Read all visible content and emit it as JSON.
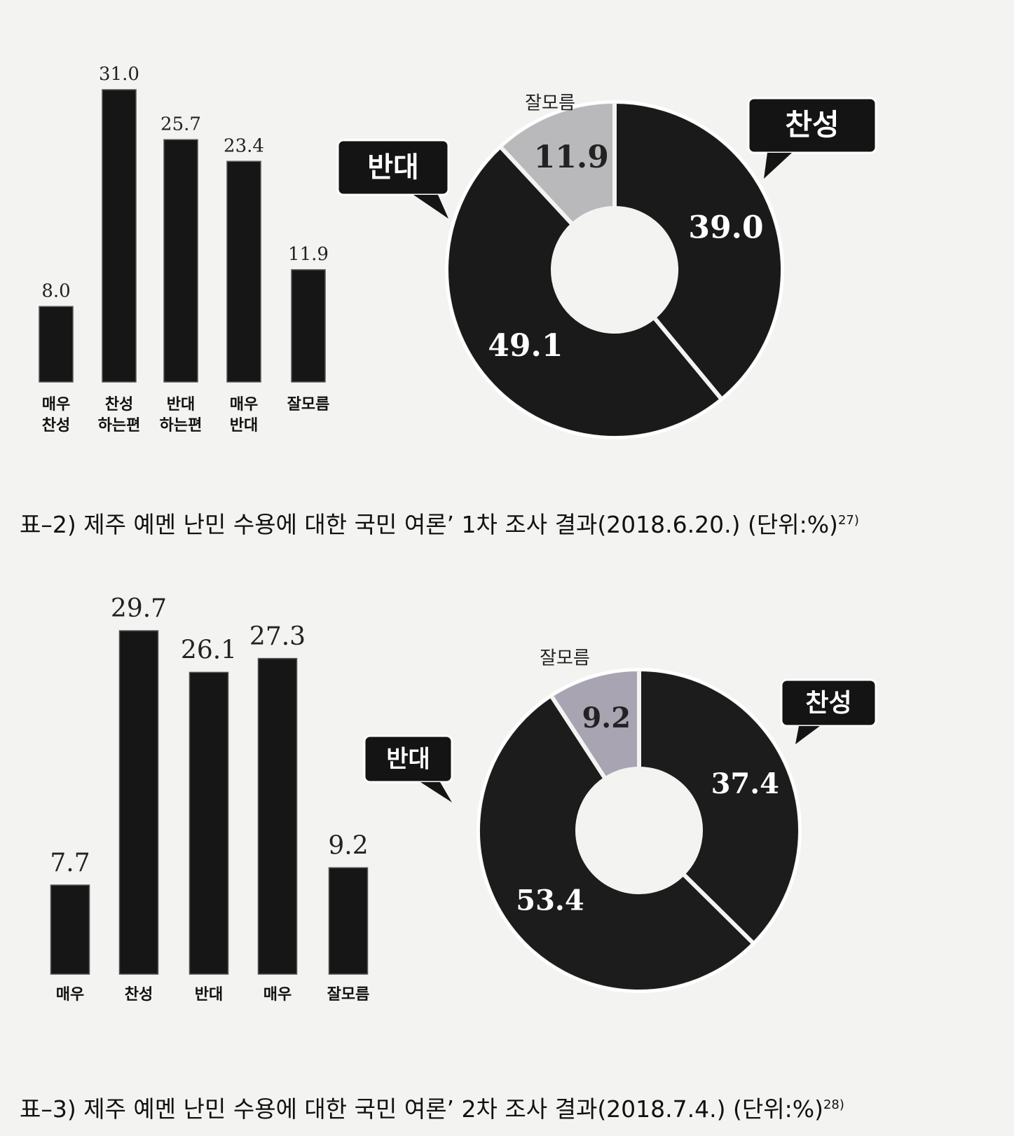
{
  "chart_data": [
    {
      "type": "bar",
      "categories": [
        [
          "매우",
          "찬성"
        ],
        [
          "찬성",
          "하는편"
        ],
        [
          "반대",
          "하는편"
        ],
        [
          "매우",
          "반대"
        ],
        [
          "잘모름"
        ]
      ],
      "values": [
        8.0,
        31.0,
        25.7,
        23.4,
        11.9
      ],
      "value_labels": [
        "8.0",
        "31.0",
        "25.7",
        "23.4",
        "11.9"
      ],
      "color": "#161616"
    },
    {
      "type": "pie",
      "categories": [
        "찬성",
        "반대",
        "잘모름"
      ],
      "values": [
        39.0,
        49.1,
        11.9
      ],
      "value_labels": [
        "39.0",
        "49.1",
        "11.9"
      ],
      "colors": [
        "#1a1a1a",
        "#1a1a1a",
        "#b9b9bb"
      ]
    },
    {
      "type": "bar",
      "categories": [
        [
          "매우"
        ],
        [
          "찬성"
        ],
        [
          "반대"
        ],
        [
          "매우"
        ],
        [
          "잘모름"
        ]
      ],
      "values": [
        7.7,
        29.7,
        26.1,
        27.3,
        9.2
      ],
      "color": "#161616"
    },
    {
      "type": "pie",
      "categories": [
        "찬성",
        "반대",
        "잘모름"
      ],
      "values": [
        37.4,
        53.4,
        9.2
      ],
      "colors": [
        "#1c1c1c",
        "#1c1c1c",
        "#a8a4b2"
      ]
    }
  ],
  "captions": [
    {
      "text": "표–2) 제주 예멘 난민 수용에 대한 국민 여론’ 1차 조사 결과(2018.6.20.) (단위:%)",
      "note": "27)"
    },
    {
      "text": "표–3) 제주 예멘 난민 수용에 대한 국민 여론’ 2차 조사 결과(2018.7.4.) (단위:%)",
      "note": "28)"
    }
  ]
}
